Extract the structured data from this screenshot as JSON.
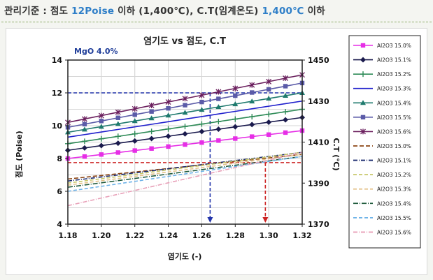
{
  "header": {
    "prefix": "관리기준 : 점도 ",
    "viscosity_limit": "12Poise",
    "middle": " 이하 (1,400℃), C.T(임계온도) ",
    "ct_limit": "1,400℃",
    "suffix": " 이하"
  },
  "chart_data": {
    "type": "line",
    "title": "염기도 vs 점도, C.T",
    "annotation": "MgO 4.0%",
    "xlabel": "염기도 (-)",
    "ylabel": "점도 (Poise)",
    "y2label": "C.T (℃)",
    "xlim": [
      1.18,
      1.32
    ],
    "ylim": [
      4,
      14
    ],
    "y2lim": [
      1370,
      1450
    ],
    "xticks": [
      "1.18",
      "1.20",
      "1.22",
      "1.24",
      "1.26",
      "1.28",
      "1.30",
      "1.32"
    ],
    "yticks": [
      "4",
      "6",
      "8",
      "10",
      "12",
      "14"
    ],
    "y2ticks": [
      "1370",
      "1390",
      "1410",
      "1430",
      "1450"
    ],
    "x": [
      1.18,
      1.19,
      1.2,
      1.21,
      1.22,
      1.23,
      1.24,
      1.25,
      1.26,
      1.27,
      1.28,
      1.29,
      1.3,
      1.31,
      1.32
    ],
    "grid": true,
    "legend_position": "right",
    "viscosity_series": [
      {
        "name": "Al2O3 15.0%",
        "color": "#e62ee6",
        "marker": "square",
        "start": 8.0,
        "end": 9.7
      },
      {
        "name": "Al2O3 15.1%",
        "color": "#1a1a4d",
        "marker": "diamond",
        "start": 8.5,
        "end": 10.5
      },
      {
        "name": "Al2O3 15.2%",
        "color": "#2e8b57",
        "marker": "plus",
        "start": 8.9,
        "end": 11.0
      },
      {
        "name": "Al2O3 15.3%",
        "color": "#1f1fcc",
        "marker": "none",
        "start": 9.3,
        "end": 11.5
      },
      {
        "name": "Al2O3 15.4%",
        "color": "#1f7a6e",
        "marker": "triangle",
        "start": 9.6,
        "end": 12.0
      },
      {
        "name": "Al2O3 15.5%",
        "color": "#5b5ba8",
        "marker": "square",
        "start": 9.9,
        "end": 12.6
      },
      {
        "name": "Al2O3 15.6%",
        "color": "#6b1f5e",
        "marker": "x",
        "start": 10.2,
        "end": 13.1
      }
    ],
    "ct_series": [
      {
        "name": "Al2O3 15.0%",
        "color": "#8b4513",
        "dash": "6,3",
        "start": 1392,
        "end": 1404
      },
      {
        "name": "Al2O3 15.1%",
        "color": "#1a2a6e",
        "dash": "6,2,1,2",
        "start": 1391,
        "end": 1405
      },
      {
        "name": "Al2O3 15.2%",
        "color": "#c7c768",
        "dash": "5,3",
        "start": 1390,
        "end": 1405
      },
      {
        "name": "Al2O3 15.3%",
        "color": "#e3c28a",
        "dash": "5,3",
        "start": 1389,
        "end": 1404
      },
      {
        "name": "Al2O3 15.4%",
        "color": "#1f5a3c",
        "dash": "7,2,1,2",
        "start": 1388,
        "end": 1403
      },
      {
        "name": "Al2O3 15.5%",
        "color": "#6fb3e8",
        "dash": "5,3",
        "start": 1386,
        "end": 1403
      },
      {
        "name": "Al2O3 15.6%",
        "color": "#e8a0b8",
        "dash": "6,2,1,2",
        "start": 1379,
        "end": 1405
      }
    ],
    "reference_lines": [
      {
        "axis": "y",
        "value": 12,
        "color": "#2233aa",
        "drop_x": 1.265
      },
      {
        "axis": "y2",
        "value": 1400,
        "color": "#cc2222",
        "drop_x": 1.298
      }
    ]
  }
}
